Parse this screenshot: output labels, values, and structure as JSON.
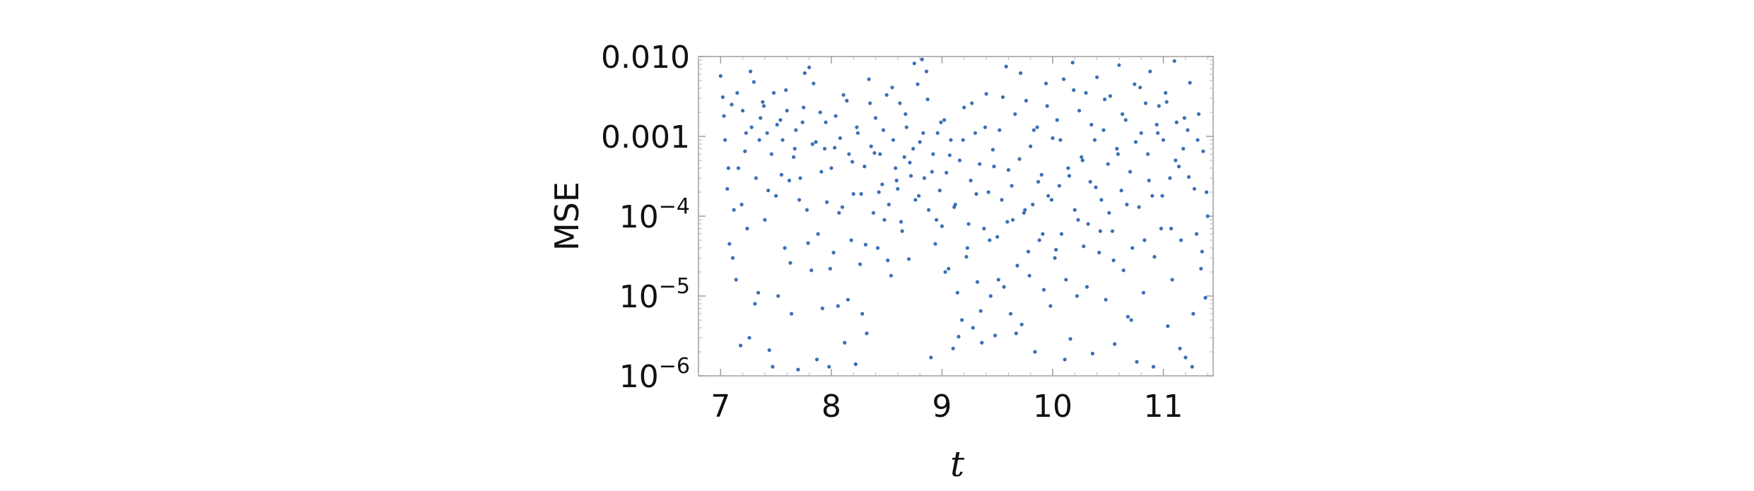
{
  "chart_data": {
    "type": "scatter",
    "title": "",
    "xlabel": "t",
    "ylabel": "MSE",
    "xlim": [
      6.8,
      11.45
    ],
    "ylim": [
      1e-06,
      0.01
    ],
    "y_scale": "log",
    "grid": false,
    "marker_color": "#3a6fb5",
    "x_ticks": [
      {
        "value": 7,
        "label": "7"
      },
      {
        "value": 8,
        "label": "8"
      },
      {
        "value": 9,
        "label": "9"
      },
      {
        "value": 10,
        "label": "10"
      },
      {
        "value": 11,
        "label": "11"
      }
    ],
    "y_ticks": [
      {
        "value": 0.01,
        "mantissa": "0.010",
        "exp": ""
      },
      {
        "value": 0.001,
        "mantissa": "0.001",
        "exp": ""
      },
      {
        "value": 0.0001,
        "mantissa": "10",
        "exp": "−4"
      },
      {
        "value": 1e-05,
        "mantissa": "10",
        "exp": "−5"
      },
      {
        "value": 1e-06,
        "mantissa": "10",
        "exp": "−6"
      }
    ],
    "points": [
      [
        7.0,
        0.0057
      ],
      [
        7.02,
        0.0031
      ],
      [
        7.04,
        0.0009
      ],
      [
        7.06,
        0.00022
      ],
      [
        7.08,
        4.5e-05
      ],
      [
        7.1,
        0.0025
      ],
      [
        7.12,
        0.00012
      ],
      [
        7.14,
        1.6e-05
      ],
      [
        7.16,
        0.0004
      ],
      [
        7.18,
        2.4e-06
      ],
      [
        7.2,
        0.0021
      ],
      [
        7.22,
        0.00065
      ],
      [
        7.24,
        7e-05
      ],
      [
        7.26,
        3e-06
      ],
      [
        7.28,
        0.0013
      ],
      [
        7.3,
        0.0048
      ],
      [
        7.32,
        0.0003
      ],
      [
        7.34,
        1.1e-05
      ],
      [
        7.36,
        0.0017
      ],
      [
        7.38,
        0.0027
      ],
      [
        7.4,
        9e-05
      ],
      [
        7.42,
        0.0011
      ],
      [
        7.44,
        2.1e-06
      ],
      [
        7.46,
        0.0006
      ],
      [
        7.48,
        0.0035
      ],
      [
        7.5,
        0.00018
      ],
      [
        7.52,
        1e-05
      ],
      [
        7.54,
        0.0016
      ],
      [
        7.56,
        0.0009
      ],
      [
        7.58,
        4e-05
      ],
      [
        7.6,
        0.0021
      ],
      [
        7.62,
        0.00028
      ],
      [
        7.64,
        6e-06
      ],
      [
        7.66,
        0.00055
      ],
      [
        7.68,
        0.0012
      ],
      [
        7.7,
        1.2e-06
      ],
      [
        7.72,
        0.0003
      ],
      [
        7.74,
        0.0015
      ],
      [
        7.76,
        0.0062
      ],
      [
        7.78,
        0.00012
      ],
      [
        7.8,
        0.0073
      ],
      [
        7.82,
        2.1e-05
      ],
      [
        7.84,
        0.0046
      ],
      [
        7.86,
        0.00085
      ],
      [
        7.88,
        6e-05
      ],
      [
        7.9,
        0.002
      ],
      [
        7.92,
        7e-06
      ],
      [
        7.94,
        0.0007
      ],
      [
        7.96,
        0.00015
      ],
      [
        7.98,
        1.3e-06
      ],
      [
        8.0,
        0.0004
      ],
      [
        8.02,
        3.5e-05
      ],
      [
        8.04,
        0.0018
      ],
      [
        8.06,
        7.5e-06
      ],
      [
        8.08,
        0.00095
      ],
      [
        8.1,
        0.00013
      ],
      [
        8.12,
        2.6e-06
      ],
      [
        8.14,
        0.0028
      ],
      [
        8.16,
        0.0006
      ],
      [
        8.18,
        5e-05
      ],
      [
        8.2,
        0.00019
      ],
      [
        8.22,
        1.4e-06
      ],
      [
        8.24,
        0.0011
      ],
      [
        8.26,
        2.5e-05
      ],
      [
        8.28,
        6e-06
      ],
      [
        8.3,
        0.00042
      ],
      [
        8.32,
        3.4e-06
      ],
      [
        8.34,
        0.0052
      ],
      [
        8.36,
        0.00075
      ],
      [
        8.38,
        0.00011
      ],
      [
        8.4,
        0.0017
      ],
      [
        8.42,
        4e-05
      ],
      [
        8.44,
        0.0006
      ],
      [
        8.46,
        0.00025
      ],
      [
        8.48,
        9e-05
      ],
      [
        8.5,
        0.0033
      ],
      [
        8.52,
        0.00014
      ],
      [
        8.54,
        1.8e-05
      ],
      [
        8.56,
        0.0009
      ],
      [
        8.58,
        0.0004
      ],
      [
        8.6,
        0.00022
      ],
      [
        8.62,
        0.0026
      ],
      [
        8.64,
        6.5e-05
      ],
      [
        8.66,
        0.00055
      ],
      [
        8.68,
        0.0013
      ],
      [
        8.7,
        2.9e-05
      ],
      [
        8.72,
        0.00032
      ],
      [
        8.74,
        0.0007
      ],
      [
        8.76,
        0.00016
      ],
      [
        8.78,
        0.0045
      ],
      [
        8.8,
        0.00085
      ],
      [
        8.82,
        0.0092
      ],
      [
        8.84,
        0.0003
      ],
      [
        8.86,
        0.0065
      ],
      [
        8.88,
        0.00012
      ],
      [
        8.9,
        1.7e-06
      ],
      [
        8.92,
        0.0006
      ],
      [
        8.94,
        4.5e-05
      ],
      [
        8.96,
        0.0011
      ],
      [
        8.98,
        0.00021
      ],
      [
        9.0,
        7.5e-05
      ],
      [
        9.02,
        0.0016
      ],
      [
        9.04,
        0.00035
      ],
      [
        9.06,
        2.2e-05
      ],
      [
        9.08,
        0.0009
      ],
      [
        9.1,
        2.2e-06
      ],
      [
        9.12,
        0.00014
      ],
      [
        9.14,
        1.1e-05
      ],
      [
        9.16,
        0.0005
      ],
      [
        9.18,
        5e-06
      ],
      [
        9.2,
        0.0023
      ],
      [
        9.22,
        3.1e-05
      ],
      [
        9.24,
        8e-05
      ],
      [
        9.26,
        0.00028
      ],
      [
        9.28,
        4e-06
      ],
      [
        9.3,
        0.0011
      ],
      [
        9.32,
        1.5e-05
      ],
      [
        9.34,
        0.00045
      ],
      [
        9.36,
        2.6e-06
      ],
      [
        9.38,
        7e-05
      ],
      [
        9.4,
        0.0034
      ],
      [
        9.42,
        0.0002
      ],
      [
        9.44,
        1e-05
      ],
      [
        9.46,
        0.00068
      ],
      [
        9.48,
        3.2e-06
      ],
      [
        9.5,
        5.5e-05
      ],
      [
        9.52,
        0.0012
      ],
      [
        9.54,
        0.00016
      ],
      [
        9.56,
        1.3e-05
      ],
      [
        9.58,
        0.0075
      ],
      [
        9.6,
        0.00038
      ],
      [
        9.62,
        6e-06
      ],
      [
        9.64,
        9e-05
      ],
      [
        9.66,
        0.0019
      ],
      [
        9.68,
        2.4e-05
      ],
      [
        9.7,
        0.00052
      ],
      [
        9.72,
        4.4e-06
      ],
      [
        9.74,
        0.00011
      ],
      [
        9.76,
        0.0028
      ],
      [
        9.78,
        3.6e-05
      ],
      [
        9.8,
        0.00075
      ],
      [
        9.82,
        0.00014
      ],
      [
        9.84,
        2e-06
      ],
      [
        9.86,
        0.0013
      ],
      [
        9.88,
        5e-05
      ],
      [
        9.9,
        0.00033
      ],
      [
        9.92,
        1.2e-05
      ],
      [
        9.94,
        0.0046
      ],
      [
        9.96,
        0.00018
      ],
      [
        9.98,
        7.5e-06
      ],
      [
        10.0,
        0.00095
      ],
      [
        10.02,
        3e-05
      ],
      [
        10.04,
        0.0016
      ],
      [
        10.06,
        0.00024
      ],
      [
        10.08,
        6e-05
      ],
      [
        10.1,
        0.0052
      ],
      [
        10.12,
        1.6e-05
      ],
      [
        10.14,
        0.0004
      ],
      [
        10.16,
        2.9e-06
      ],
      [
        10.18,
        0.0084
      ],
      [
        10.2,
        0.00012
      ],
      [
        10.22,
        1e-05
      ],
      [
        10.24,
        0.0021
      ],
      [
        10.26,
        0.00055
      ],
      [
        10.28,
        4.2e-05
      ],
      [
        10.3,
        0.0035
      ],
      [
        10.32,
        8e-05
      ],
      [
        10.34,
        0.00027
      ],
      [
        10.36,
        1.9e-06
      ],
      [
        10.38,
        0.0009
      ],
      [
        10.4,
        0.0055
      ],
      [
        10.42,
        3.5e-05
      ],
      [
        10.44,
        0.00016
      ],
      [
        10.46,
        0.0012
      ],
      [
        10.48,
        9e-06
      ],
      [
        10.5,
        0.00045
      ],
      [
        10.52,
        0.0032
      ],
      [
        10.54,
        6.5e-05
      ],
      [
        10.56,
        2.5e-06
      ],
      [
        10.58,
        0.0007
      ],
      [
        10.6,
        0.0078
      ],
      [
        10.62,
        0.00021
      ],
      [
        10.64,
        2.1e-05
      ],
      [
        10.66,
        0.0016
      ],
      [
        10.68,
        5.5e-06
      ],
      [
        10.7,
        0.00036
      ],
      [
        10.72,
        4e-05
      ],
      [
        10.74,
        0.0045
      ],
      [
        10.76,
        1.5e-06
      ],
      [
        10.78,
        0.00013
      ],
      [
        10.8,
        0.0011
      ],
      [
        10.82,
        1.1e-05
      ],
      [
        10.84,
        0.0026
      ],
      [
        10.86,
        0.0006
      ],
      [
        10.88,
        0.0065
      ],
      [
        10.9,
        0.00018
      ],
      [
        10.92,
        3.1e-05
      ],
      [
        10.94,
        0.0014
      ],
      [
        10.96,
        0.0024
      ],
      [
        10.98,
        7e-05
      ],
      [
        11.0,
        0.0009
      ],
      [
        11.02,
        0.0035
      ],
      [
        11.04,
        4.2e-06
      ],
      [
        11.06,
        0.0003
      ],
      [
        11.08,
        1.6e-05
      ],
      [
        11.1,
        0.0088
      ],
      [
        11.12,
        0.0015
      ],
      [
        11.14,
        0.00042
      ],
      [
        11.16,
        5e-05
      ],
      [
        11.18,
        0.0007
      ],
      [
        11.2,
        1.7e-06
      ],
      [
        11.22,
        0.0012
      ],
      [
        11.24,
        0.0047
      ],
      [
        11.26,
        1.3e-06
      ],
      [
        11.28,
        0.00022
      ],
      [
        11.3,
        6e-05
      ],
      [
        11.32,
        0.0019
      ],
      [
        11.34,
        2.2e-05
      ],
      [
        11.36,
        0.00065
      ],
      [
        11.38,
        9.5e-06
      ],
      [
        11.4,
        0.0001
      ],
      [
        7.03,
        0.0018
      ],
      [
        7.07,
        0.0004
      ],
      [
        7.11,
        3e-05
      ],
      [
        7.15,
        0.0035
      ],
      [
        7.19,
        0.00014
      ],
      [
        7.23,
        0.0011
      ],
      [
        7.27,
        0.0065
      ],
      [
        7.31,
        8e-06
      ],
      [
        7.35,
        0.0009
      ],
      [
        7.39,
        0.0024
      ],
      [
        7.43,
        0.00021
      ],
      [
        7.47,
        1.3e-06
      ],
      [
        7.51,
        0.0014
      ],
      [
        7.55,
        0.00033
      ],
      [
        7.59,
        0.0038
      ],
      [
        7.63,
        2.6e-05
      ],
      [
        7.67,
        0.0007
      ],
      [
        7.71,
        0.00016
      ],
      [
        7.75,
        0.0023
      ],
      [
        7.79,
        4.6e-05
      ],
      [
        7.83,
        0.0008
      ],
      [
        7.87,
        1.6e-06
      ],
      [
        7.91,
        0.00036
      ],
      [
        7.95,
        0.0015
      ],
      [
        7.99,
        2.2e-05
      ],
      [
        8.03,
        0.00072
      ],
      [
        8.07,
        0.00011
      ],
      [
        8.11,
        0.0033
      ],
      [
        8.15,
        9e-06
      ],
      [
        8.19,
        0.00048
      ],
      [
        8.23,
        0.0013
      ],
      [
        8.27,
        0.00019
      ],
      [
        8.31,
        4.4e-05
      ],
      [
        8.35,
        0.0026
      ],
      [
        8.39,
        0.00062
      ],
      [
        8.43,
        0.0002
      ],
      [
        8.47,
        0.0012
      ],
      [
        8.51,
        2.8e-05
      ],
      [
        8.55,
        0.0041
      ],
      [
        8.59,
        0.00028
      ],
      [
        8.63,
        8.5e-05
      ],
      [
        8.67,
        0.0019
      ],
      [
        8.71,
        0.00047
      ],
      [
        8.75,
        0.0082
      ],
      [
        8.79,
        0.00018
      ],
      [
        8.83,
        0.0011
      ],
      [
        8.87,
        0.0029
      ],
      [
        8.91,
        0.00036
      ],
      [
        8.95,
        9e-05
      ],
      [
        8.99,
        0.0015
      ],
      [
        9.03,
        2e-05
      ],
      [
        9.07,
        0.00058
      ],
      [
        9.11,
        0.00013
      ],
      [
        9.15,
        3.1e-06
      ],
      [
        9.19,
        0.0009
      ],
      [
        9.23,
        4e-05
      ],
      [
        9.27,
        0.0026
      ],
      [
        9.31,
        0.00019
      ],
      [
        9.35,
        6.5e-06
      ],
      [
        9.39,
        0.0013
      ],
      [
        9.43,
        5e-05
      ],
      [
        9.47,
        0.00042
      ],
      [
        9.51,
        1.6e-05
      ],
      [
        9.55,
        0.0031
      ],
      [
        9.59,
        8.5e-05
      ],
      [
        9.63,
        0.00024
      ],
      [
        9.67,
        3.4e-06
      ],
      [
        9.71,
        0.0062
      ],
      [
        9.75,
        0.00012
      ],
      [
        9.79,
        1.8e-05
      ],
      [
        9.83,
        0.0012
      ],
      [
        9.87,
        0.00027
      ],
      [
        9.91,
        6e-05
      ],
      [
        9.95,
        0.0024
      ],
      [
        9.99,
        0.00016
      ],
      [
        10.03,
        3.8e-05
      ],
      [
        10.07,
        0.0009
      ],
      [
        10.11,
        1.6e-06
      ],
      [
        10.15,
        0.00032
      ],
      [
        10.19,
        0.0038
      ],
      [
        10.23,
        9e-05
      ],
      [
        10.27,
        0.0005
      ],
      [
        10.31,
        1.3e-05
      ],
      [
        10.35,
        0.0014
      ],
      [
        10.39,
        0.00023
      ],
      [
        10.43,
        6.5e-05
      ],
      [
        10.47,
        0.0029
      ],
      [
        10.51,
        0.00011
      ],
      [
        10.55,
        2.8e-05
      ],
      [
        10.59,
        0.0006
      ],
      [
        10.63,
        0.0019
      ],
      [
        10.67,
        0.00014
      ],
      [
        10.71,
        5e-06
      ],
      [
        10.75,
        0.00085
      ],
      [
        10.79,
        0.0041
      ],
      [
        10.83,
        5e-05
      ],
      [
        10.87,
        0.00028
      ],
      [
        10.91,
        1.3e-06
      ],
      [
        10.95,
        0.0011
      ],
      [
        10.99,
        0.00018
      ],
      [
        11.03,
        0.0027
      ],
      [
        11.07,
        7e-05
      ],
      [
        11.11,
        0.0005
      ],
      [
        11.15,
        2.2e-06
      ],
      [
        11.19,
        0.0017
      ],
      [
        11.23,
        0.00031
      ],
      [
        11.27,
        6e-06
      ],
      [
        11.31,
        0.0009
      ],
      [
        11.35,
        3.6e-05
      ],
      [
        11.39,
        0.0002
      ]
    ]
  }
}
